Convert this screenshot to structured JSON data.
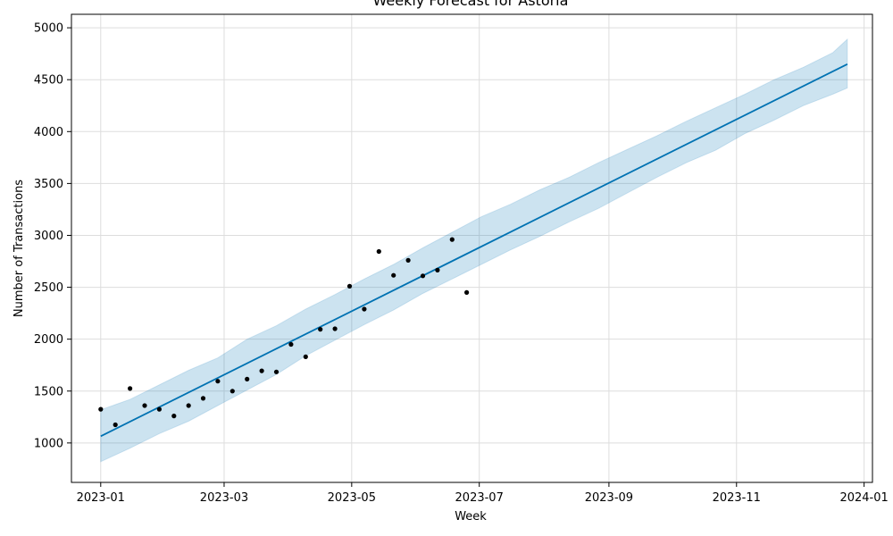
{
  "chart_data": {
    "type": "line",
    "title": "Weekly Forecast for Astoria",
    "xlabel": "Week",
    "ylabel": "Number of Transactions",
    "x_range": [
      "2022-12-18",
      "2024-01-05"
    ],
    "ylim": [
      620,
      5130
    ],
    "x_ticks": [
      {
        "date": "2023-01-01",
        "label": "2023-01"
      },
      {
        "date": "2023-03-01",
        "label": "2023-03"
      },
      {
        "date": "2023-05-01",
        "label": "2023-05"
      },
      {
        "date": "2023-07-01",
        "label": "2023-07"
      },
      {
        "date": "2023-09-01",
        "label": "2023-09"
      },
      {
        "date": "2023-11-01",
        "label": "2023-11"
      },
      {
        "date": "2024-01-01",
        "label": "2024-01"
      }
    ],
    "y_ticks": [
      1000,
      1500,
      2000,
      2500,
      3000,
      3500,
      4000,
      4500,
      5000
    ],
    "grid": true,
    "colors": {
      "forecast_line": "#0072B2",
      "interval_fill": "#0072B2",
      "points": "#000000",
      "grid": "#dddddd"
    },
    "series": [
      {
        "type": "points",
        "x": [
          "2023-01-01",
          "2023-01-08",
          "2023-01-15",
          "2023-01-22",
          "2023-01-29",
          "2023-02-05",
          "2023-02-12",
          "2023-02-19",
          "2023-02-26",
          "2023-03-05",
          "2023-03-12",
          "2023-03-19",
          "2023-03-26",
          "2023-04-02",
          "2023-04-09",
          "2023-04-16",
          "2023-04-23",
          "2023-04-30",
          "2023-05-07",
          "2023-05-14",
          "2023-05-21",
          "2023-05-28",
          "2023-06-04",
          "2023-06-11",
          "2023-06-18",
          "2023-06-25"
        ],
        "y": [
          1325,
          1175,
          1525,
          1360,
          1325,
          1260,
          1360,
          1430,
          1595,
          1500,
          1615,
          1695,
          1685,
          1950,
          1830,
          2095,
          2100,
          2510,
          2290,
          2845,
          2615,
          2760,
          2610,
          2665,
          2960,
          2450
        ]
      },
      {
        "type": "line",
        "x": [
          "2023-01-01",
          "2023-12-24"
        ],
        "y": [
          1065,
          4650
        ]
      },
      {
        "type": "interval",
        "x": [
          "2023-01-01",
          "2023-01-15",
          "2023-01-29",
          "2023-02-12",
          "2023-02-26",
          "2023-03-12",
          "2023-03-26",
          "2023-04-09",
          "2023-04-23",
          "2023-05-07",
          "2023-05-21",
          "2023-06-04",
          "2023-06-18",
          "2023-07-02",
          "2023-07-16",
          "2023-07-30",
          "2023-08-13",
          "2023-08-27",
          "2023-09-10",
          "2023-09-24",
          "2023-10-08",
          "2023-10-22",
          "2023-11-05",
          "2023-11-19",
          "2023-12-03",
          "2023-12-17",
          "2023-12-24"
        ],
        "upper": [
          1320,
          1420,
          1560,
          1700,
          1820,
          2000,
          2130,
          2290,
          2430,
          2580,
          2720,
          2880,
          3030,
          3180,
          3300,
          3440,
          3560,
          3700,
          3830,
          3960,
          4100,
          4230,
          4360,
          4500,
          4620,
          4760,
          4890
        ],
        "lower": [
          820,
          950,
          1090,
          1210,
          1360,
          1510,
          1660,
          1840,
          1990,
          2140,
          2280,
          2440,
          2580,
          2720,
          2860,
          2990,
          3130,
          3260,
          3410,
          3560,
          3700,
          3820,
          3980,
          4110,
          4250,
          4360,
          4420
        ]
      }
    ]
  }
}
